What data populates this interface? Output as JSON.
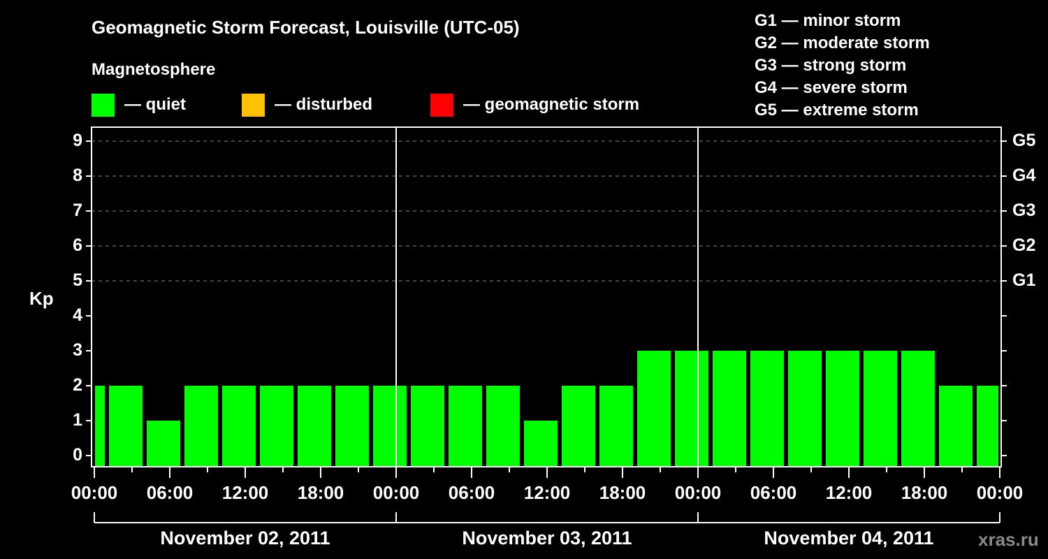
{
  "chart_data": {
    "type": "bar",
    "title": "Geomagnetic Storm Forecast, Louisville (UTC-05)",
    "subtitle": "Magnetosphere",
    "xlabel": "",
    "ylabel": "Kp",
    "ylim": [
      -0.32,
      9.6
    ],
    "yticks": [
      "0",
      "1",
      "2",
      "3",
      "4",
      "5",
      "6",
      "7",
      "8",
      "9"
    ],
    "right_axis_ticks": [
      {
        "kp": 5,
        "label": "G1"
      },
      {
        "kp": 6,
        "label": "G2"
      },
      {
        "kp": 7,
        "label": "G3"
      },
      {
        "kp": 8,
        "label": "G4"
      },
      {
        "kp": 9,
        "label": "G5"
      }
    ],
    "grid": "dashed horizontal lines at Kp 5-9",
    "x_tick_labels": [
      "00:00",
      "06:00",
      "12:00",
      "18:00",
      "00:00",
      "06:00",
      "12:00",
      "18:00",
      "00:00",
      "06:00",
      "12:00",
      "18:00",
      "00:00"
    ],
    "date_labels": [
      "November 02, 2011",
      "November 03, 2011",
      "November 04, 2011"
    ],
    "bar_interval_hours": 3,
    "values": [
      2,
      2,
      1,
      2,
      2,
      2,
      2,
      2,
      2,
      2,
      2,
      2,
      1,
      2,
      2,
      3,
      3,
      3,
      3,
      3,
      3,
      3,
      3,
      2,
      2
    ],
    "bar_colors": {
      "quiet": "#00ff00",
      "disturbed": "#ffc000",
      "storm": "#ff0000"
    },
    "legend": [
      {
        "label": "— quiet",
        "color": "#00ff00"
      },
      {
        "label": "— disturbed",
        "color": "#ffc000"
      },
      {
        "label": "— geomagnetic storm",
        "color": "#ff0000"
      }
    ],
    "storm_scale": [
      "G1 — minor storm",
      "G2 — moderate storm",
      "G3 — strong storm",
      "G4 — severe storm",
      "G5 — extreme storm"
    ]
  },
  "credit": "xras.ru"
}
